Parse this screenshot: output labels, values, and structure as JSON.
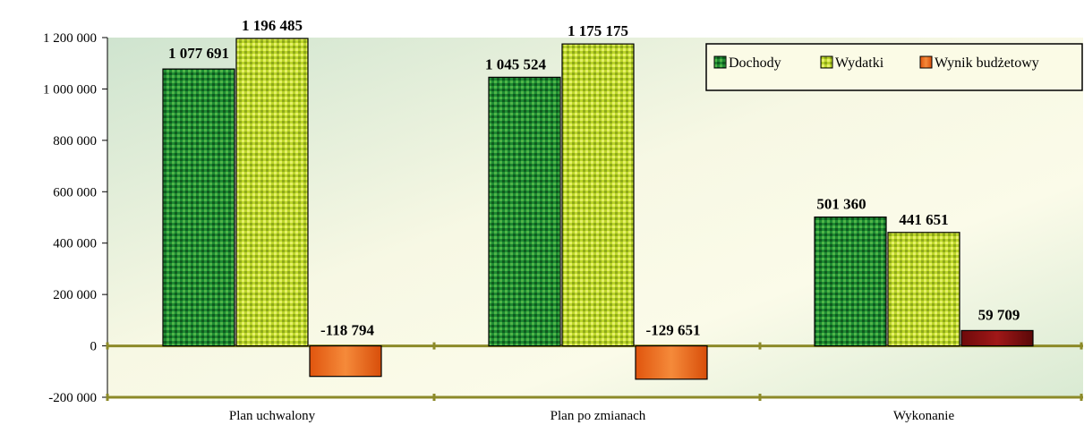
{
  "colors": {
    "dochody": "#1e8a32",
    "wydatki": "#bcd62a",
    "wynik_negative": "#f06a1c",
    "wynik_positive": "#8a1010",
    "axis": "#8c8a28",
    "legend_border": "#000000"
  },
  "chart_data": {
    "type": "bar",
    "categories": [
      "Plan uchwalony",
      "Plan po zmianach",
      "Wykonanie"
    ],
    "series": [
      {
        "name": "Dochody",
        "values": [
          1077691,
          1045524,
          501360
        ],
        "labels": [
          "1 077 691",
          "1 045 524",
          "501 360"
        ]
      },
      {
        "name": "Wydatki",
        "values": [
          1196485,
          1175175,
          441651
        ],
        "labels": [
          "1 196 485",
          "1 175 175",
          "441 651"
        ]
      },
      {
        "name": "Wynik budżetowy",
        "values": [
          -118794,
          -129651,
          59709
        ],
        "labels": [
          "-118 794",
          "-129 651",
          "59 709"
        ]
      }
    ],
    "ylim": [
      -200000,
      1200000
    ],
    "yticks": [
      -200000,
      0,
      200000,
      400000,
      600000,
      800000,
      1000000,
      1200000
    ],
    "ytick_labels": [
      "-200 000",
      "0",
      "200 000",
      "400 000",
      "600 000",
      "800 000",
      "1 000 000",
      "1 200 000"
    ],
    "title": "",
    "xlabel": "",
    "ylabel": "",
    "legend_position": "top-right",
    "grid": false
  }
}
